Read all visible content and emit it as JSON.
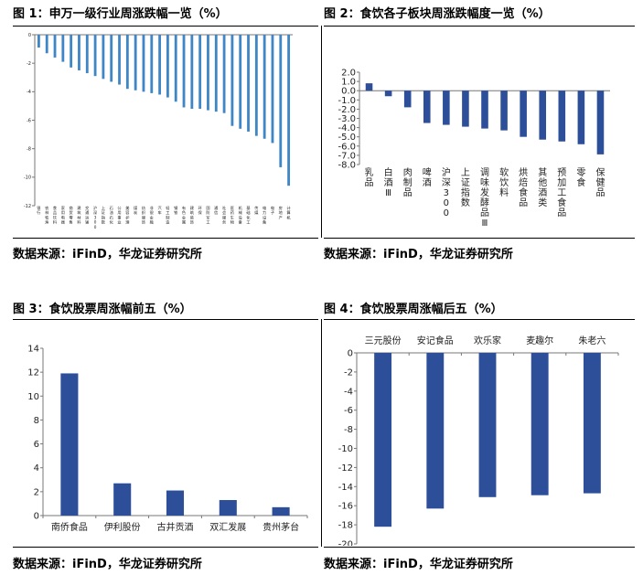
{
  "panels": [
    {
      "caption": "图 1：申万一级行业周涨跌幅一览（%）",
      "source": "数据来源：iFinD，华龙证券研究所"
    },
    {
      "caption": "图 2：食饮各子板块周涨跌幅度一览（%）",
      "source": "数据来源：iFinD，华龙证券研究所"
    },
    {
      "caption": "图 3：食饮股票周涨幅前五（%）",
      "source": "数据来源：iFinD，华龙证券研究所"
    },
    {
      "caption": "图 4：食饮股票周涨幅后五（%）",
      "source": "数据来源：iFinD，华龙证券研究所"
    }
  ],
  "colors": {
    "bar_light": "#3f86c6",
    "bar_dark": "#2d4f9a",
    "axis": "#777777"
  },
  "chart_data": [
    {
      "type": "bar",
      "title": "",
      "categories": [
        "银行",
        "农林牧渔",
        "食品饮料",
        "家用电器",
        "商贸零售",
        "建筑材料",
        "交通运输",
        "沪深300",
        "上证指数",
        "石油石化",
        "公用事业",
        "美容护理",
        "煤炭",
        "纺织服饰",
        "非银金融",
        "汽车",
        "轻工制造",
        "钢铁",
        "有色金属",
        "建筑装饰",
        "环保",
        "国防军工",
        "通信",
        "社会服务",
        "医药生物",
        "机械设备",
        "基础化工",
        "传媒",
        "电力设备",
        "电子",
        "房地产",
        "计算机"
      ],
      "values": [
        -0.9,
        -1.3,
        -1.6,
        -1.9,
        -2.3,
        -2.5,
        -2.7,
        -2.9,
        -3.1,
        -3.3,
        -3.5,
        -3.8,
        -3.9,
        -4.0,
        -4.1,
        -4.2,
        -4.4,
        -4.7,
        -5.1,
        -5.2,
        -5.2,
        -5.3,
        -5.4,
        -5.5,
        -6.4,
        -6.6,
        -6.8,
        -7.1,
        -7.3,
        -7.6,
        -9.3,
        -10.6
      ],
      "ylim": [
        -12,
        0
      ],
      "yticks": [
        0,
        -2,
        -4,
        -6,
        -8,
        -10,
        -12
      ]
    },
    {
      "type": "bar",
      "title": "",
      "categories": [
        "乳品",
        "白酒Ⅲ",
        "肉制品",
        "啤酒",
        "沪深300",
        "上证指数",
        "调味发酵品Ⅲ",
        "软饮料",
        "烘焙食品",
        "其他酒类",
        "预加工食品",
        "零食",
        "保健品"
      ],
      "values": [
        0.8,
        -0.6,
        -1.8,
        -3.5,
        -3.7,
        -3.9,
        -4.1,
        -4.3,
        -5.0,
        -5.3,
        -5.5,
        -5.8,
        -6.9
      ],
      "ylim": [
        -8,
        2
      ],
      "yticks": [
        "2.0",
        "1.0",
        "0.0",
        "-1.0",
        "-2.0",
        "-3.0",
        "-4.0",
        "-5.0",
        "-6.0",
        "-7.0",
        "-8.0"
      ]
    },
    {
      "type": "bar",
      "title": "",
      "categories": [
        "南侨食品",
        "伊利股份",
        "古井贡酒",
        "双汇发展",
        "贵州茅台"
      ],
      "values": [
        11.9,
        2.7,
        2.1,
        1.3,
        0.7
      ],
      "ylim": [
        0,
        14
      ],
      "yticks": [
        "14",
        "12",
        "10",
        "8",
        "6",
        "4",
        "2",
        "0"
      ]
    },
    {
      "type": "bar",
      "title": "",
      "categories": [
        "三元股份",
        "安记食品",
        "欢乐家",
        "麦趣尔",
        "朱老六"
      ],
      "values": [
        -18.2,
        -16.3,
        -15.1,
        -14.9,
        -14.7
      ],
      "ylim": [
        -20,
        0
      ],
      "yticks": [
        "0",
        "-2",
        "-4",
        "-6",
        "-8",
        "-10",
        "-12",
        "-14",
        "-16",
        "-18",
        "-20"
      ]
    }
  ]
}
